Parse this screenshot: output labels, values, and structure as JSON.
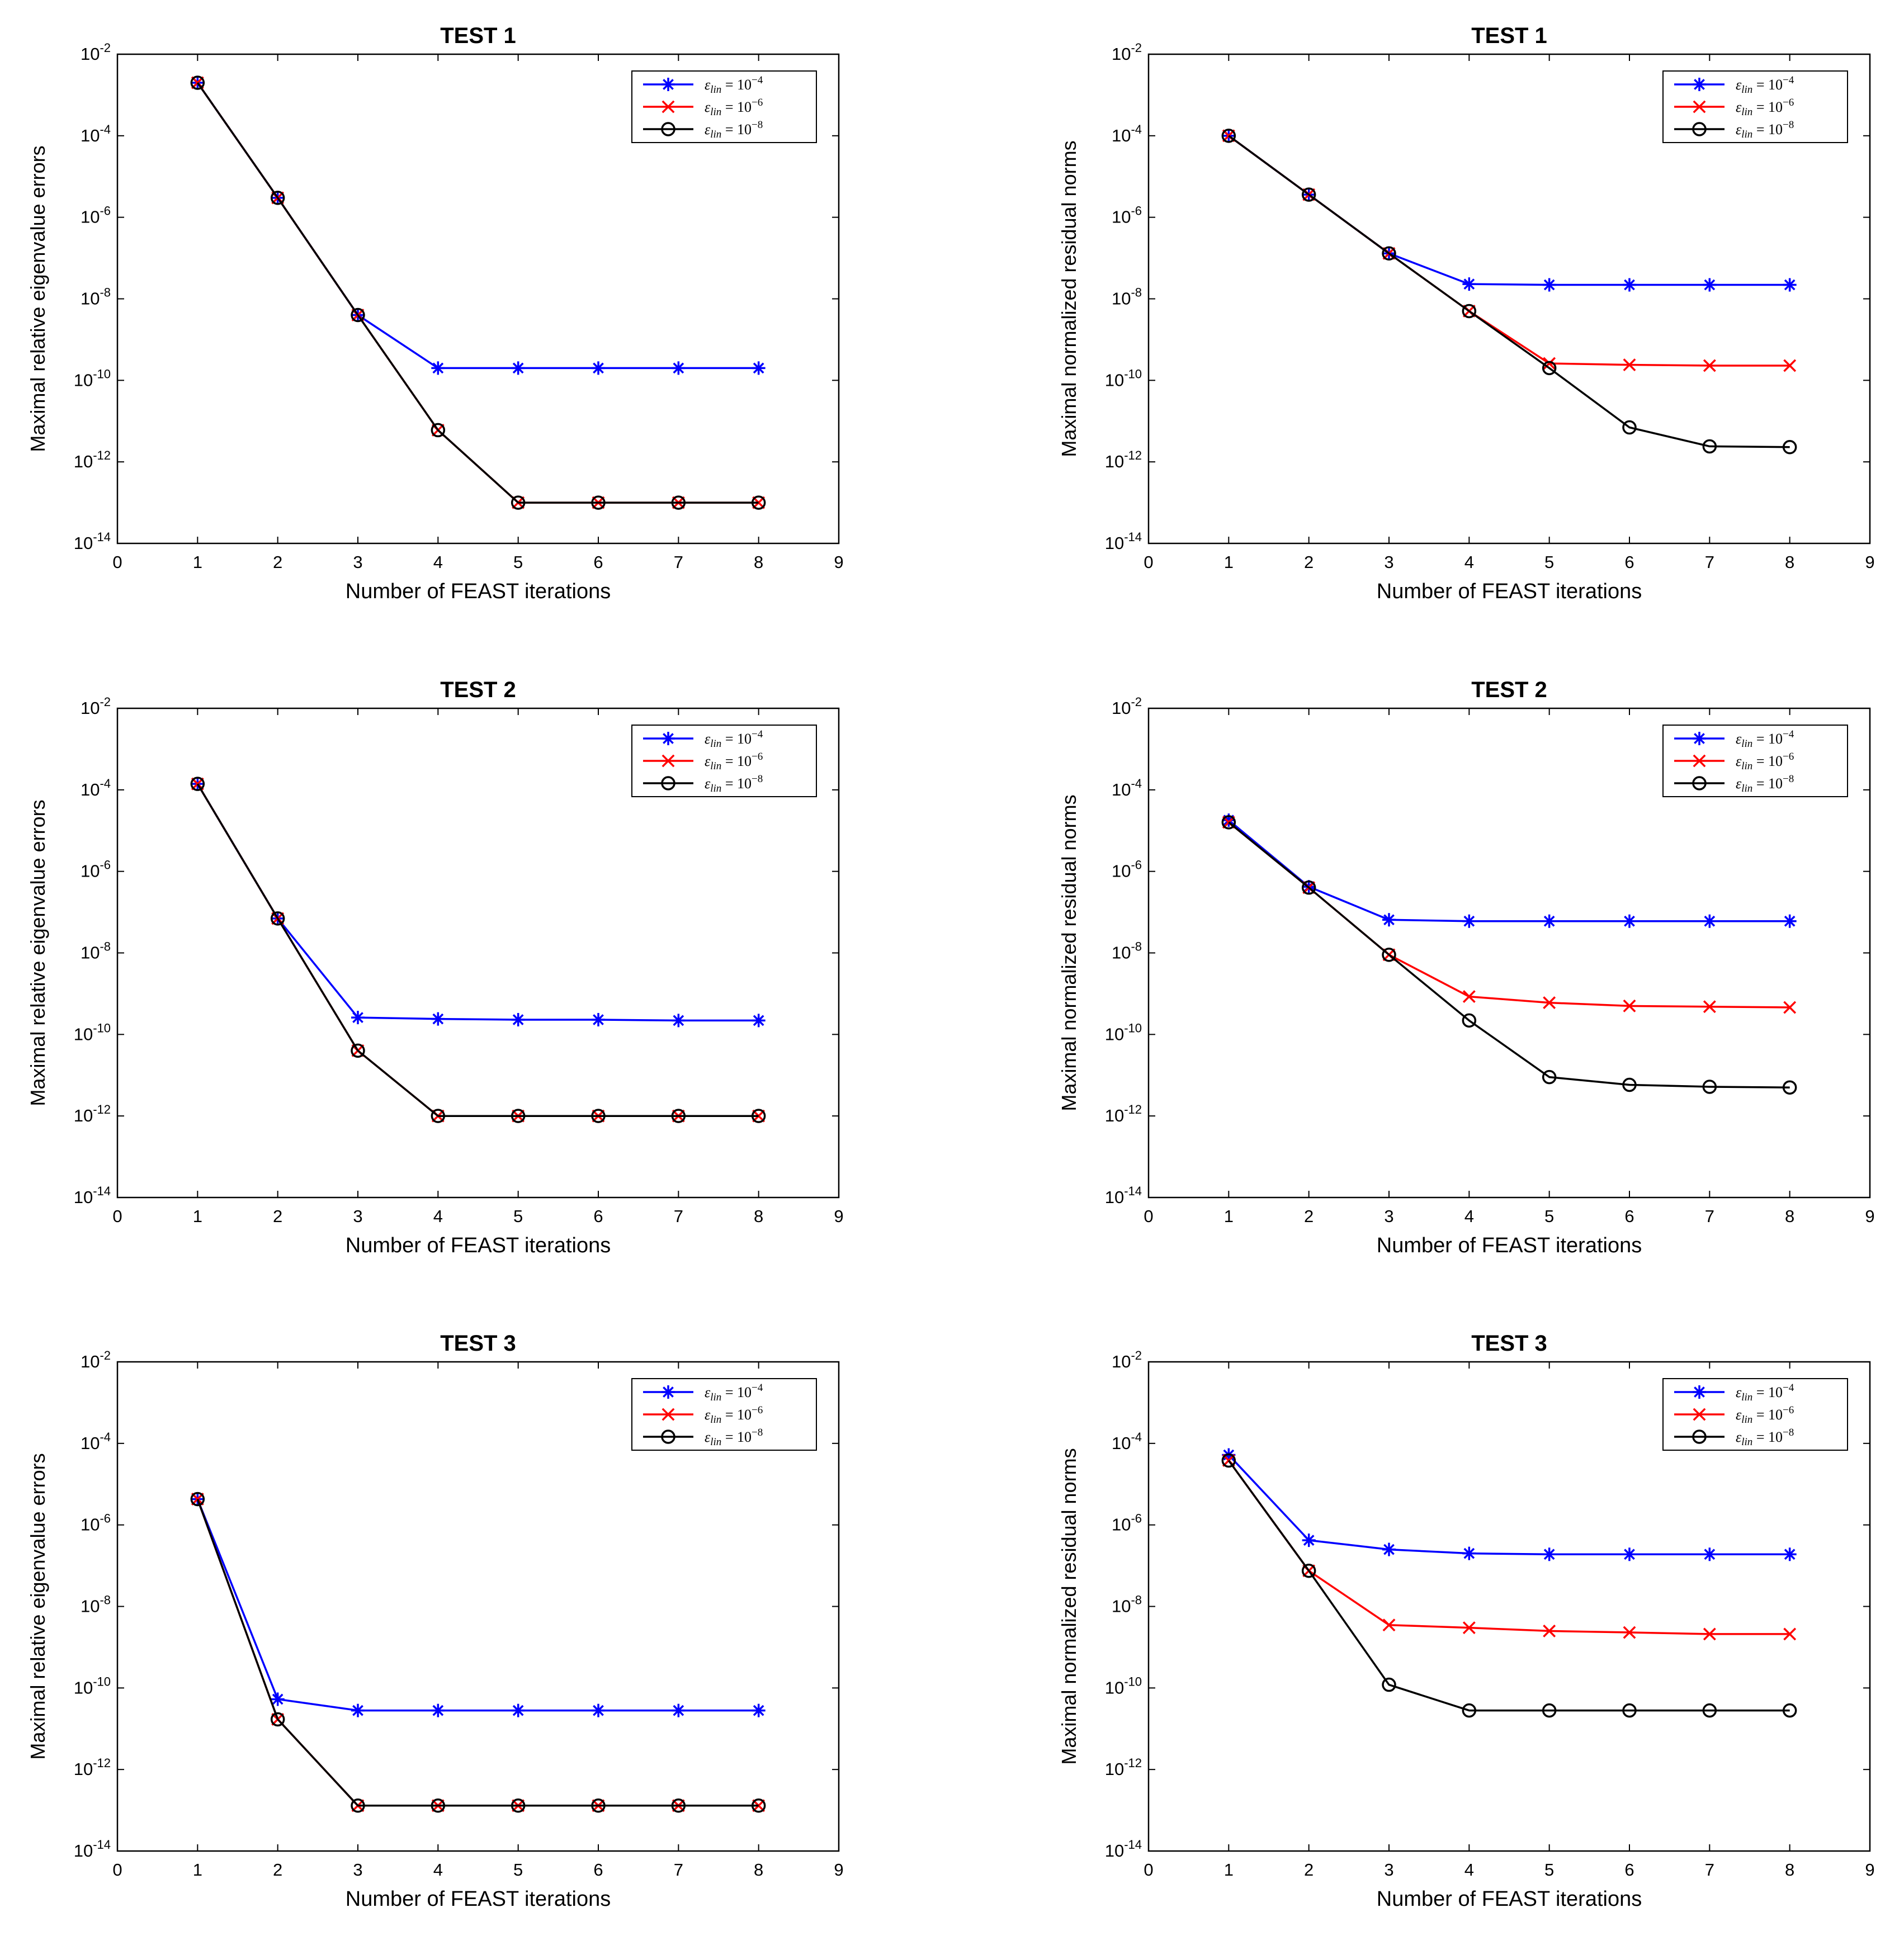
{
  "figure": {
    "x_axis_label": "Number of FEAST iterations",
    "y_axis_label_left": "Maximal relative eigenvalue errors",
    "y_axis_label_right": "Maximal normalized residual norms",
    "x_ticks": [
      "0",
      "1",
      "2",
      "3",
      "4",
      "5",
      "6",
      "7",
      "8",
      "9"
    ],
    "y_ticks": [
      {
        "base": "10",
        "exp": "-14"
      },
      {
        "base": "10",
        "exp": "-12"
      },
      {
        "base": "10",
        "exp": "-10"
      },
      {
        "base": "10",
        "exp": "-8"
      },
      {
        "base": "10",
        "exp": "-6"
      },
      {
        "base": "10",
        "exp": "-4"
      },
      {
        "base": "10",
        "exp": "-2"
      }
    ],
    "legend": [
      {
        "symbol": "ε",
        "sub": "lin",
        "eq": " = 10",
        "exp": "−4",
        "color": "#0000ff",
        "marker": "asterisk"
      },
      {
        "symbol": "ε",
        "sub": "lin",
        "eq": " = 10",
        "exp": "−6",
        "color": "#ff0000",
        "marker": "x"
      },
      {
        "symbol": "ε",
        "sub": "lin",
        "eq": " = 10",
        "exp": "−8",
        "color": "#000000",
        "marker": "circle"
      }
    ]
  },
  "chart_data": [
    {
      "type": "line",
      "title": "TEST 1",
      "xlabel": "Number of FEAST iterations",
      "ylabel": "Maximal relative eigenvalue errors",
      "xlim": [
        0,
        9
      ],
      "ylim": [
        1e-14,
        0.01
      ],
      "yscale": "log",
      "legend_position": "top-right",
      "x": [
        1,
        2,
        3,
        4,
        5,
        6,
        7,
        8
      ],
      "series": [
        {
          "name": "ε_lin = 10^-4",
          "color": "#0000ff",
          "marker": "asterisk",
          "values": [
            0.002,
            3e-06,
            4e-09,
            2e-10,
            2e-10,
            2e-10,
            2e-10,
            2e-10
          ]
        },
        {
          "name": "ε_lin = 10^-6",
          "color": "#ff0000",
          "marker": "x",
          "values": [
            0.002,
            3e-06,
            4e-09,
            6e-12,
            1e-13,
            1e-13,
            1e-13,
            1e-13
          ]
        },
        {
          "name": "ε_lin = 10^-8",
          "color": "#000000",
          "marker": "circle",
          "values": [
            0.002,
            3e-06,
            4e-09,
            6e-12,
            1e-13,
            1e-13,
            1e-13,
            1e-13
          ]
        }
      ]
    },
    {
      "type": "line",
      "title": "TEST 1",
      "xlabel": "Number of FEAST iterations",
      "ylabel": "Maximal normalized residual norms",
      "xlim": [
        0,
        9
      ],
      "ylim": [
        1e-14,
        0.01
      ],
      "yscale": "log",
      "legend_position": "top-right",
      "x": [
        1,
        2,
        3,
        4,
        5,
        6,
        7,
        8
      ],
      "series": [
        {
          "name": "ε_lin = 10^-4",
          "color": "#0000ff",
          "marker": "asterisk",
          "values": [
            0.0001,
            3.6e-06,
            1.3e-07,
            2.3e-08,
            2.2e-08,
            2.2e-08,
            2.2e-08,
            2.2e-08
          ]
        },
        {
          "name": "ε_lin = 10^-6",
          "color": "#ff0000",
          "marker": "x",
          "values": [
            0.0001,
            3.6e-06,
            1.3e-07,
            5e-09,
            2.6e-10,
            2.4e-10,
            2.3e-10,
            2.3e-10
          ]
        },
        {
          "name": "ε_lin = 10^-8",
          "color": "#000000",
          "marker": "circle",
          "values": [
            0.0001,
            3.6e-06,
            1.3e-07,
            5e-09,
            2e-10,
            7e-12,
            2.4e-12,
            2.3e-12
          ]
        }
      ]
    },
    {
      "type": "line",
      "title": "TEST 2",
      "xlabel": "Number of FEAST iterations",
      "ylabel": "Maximal relative eigenvalue errors",
      "xlim": [
        0,
        9
      ],
      "ylim": [
        1e-14,
        0.01
      ],
      "yscale": "log",
      "legend_position": "top-right",
      "x": [
        1,
        2,
        3,
        4,
        5,
        6,
        7,
        8
      ],
      "series": [
        {
          "name": "ε_lin = 10^-4",
          "color": "#0000ff",
          "marker": "asterisk",
          "values": [
            0.00014,
            7e-08,
            2.6e-10,
            2.4e-10,
            2.3e-10,
            2.3e-10,
            2.2e-10,
            2.2e-10
          ]
        },
        {
          "name": "ε_lin = 10^-6",
          "color": "#ff0000",
          "marker": "x",
          "values": [
            0.00014,
            7e-08,
            4e-11,
            1e-12,
            1e-12,
            1e-12,
            1e-12,
            1e-12
          ]
        },
        {
          "name": "ε_lin = 10^-8",
          "color": "#000000",
          "marker": "circle",
          "values": [
            0.00014,
            7e-08,
            4e-11,
            1e-12,
            1e-12,
            1e-12,
            1e-12,
            1e-12
          ]
        }
      ]
    },
    {
      "type": "line",
      "title": "TEST 2",
      "xlabel": "Number of FEAST iterations",
      "ylabel": "Maximal normalized residual norms",
      "xlim": [
        0,
        9
      ],
      "ylim": [
        1e-14,
        0.01
      ],
      "yscale": "log",
      "legend_position": "top-right",
      "x": [
        1,
        2,
        3,
        4,
        5,
        6,
        7,
        8
      ],
      "series": [
        {
          "name": "ε_lin = 10^-4",
          "color": "#0000ff",
          "marker": "asterisk",
          "values": [
            1.8e-05,
            4.2e-07,
            6.5e-08,
            6e-08,
            6e-08,
            6e-08,
            6e-08,
            6e-08
          ]
        },
        {
          "name": "ε_lin = 10^-6",
          "color": "#ff0000",
          "marker": "x",
          "values": [
            1.6e-05,
            4e-07,
            9e-09,
            8.5e-10,
            6e-10,
            5e-10,
            4.8e-10,
            4.6e-10
          ]
        },
        {
          "name": "ε_lin = 10^-8",
          "color": "#000000",
          "marker": "circle",
          "values": [
            1.6e-05,
            4e-07,
            9e-09,
            2.2e-10,
            9e-12,
            5.8e-12,
            5.2e-12,
            5e-12
          ]
        }
      ]
    },
    {
      "type": "line",
      "title": "TEST 3",
      "xlabel": "Number of FEAST iterations",
      "ylabel": "Maximal relative eigenvalue errors",
      "xlim": [
        0,
        9
      ],
      "ylim": [
        1e-14,
        0.01
      ],
      "yscale": "log",
      "legend_position": "top-right",
      "x": [
        1,
        2,
        3,
        4,
        5,
        6,
        7,
        8
      ],
      "series": [
        {
          "name": "ε_lin = 10^-4",
          "color": "#0000ff",
          "marker": "asterisk",
          "values": [
            4.3e-06,
            5.3e-11,
            2.8e-11,
            2.8e-11,
            2.8e-11,
            2.8e-11,
            2.8e-11,
            2.8e-11
          ]
        },
        {
          "name": "ε_lin = 10^-6",
          "color": "#ff0000",
          "marker": "x",
          "values": [
            4.3e-06,
            1.7e-11,
            1.3e-13,
            1.3e-13,
            1.3e-13,
            1.3e-13,
            1.3e-13,
            1.3e-13
          ]
        },
        {
          "name": "ε_lin = 10^-8",
          "color": "#000000",
          "marker": "circle",
          "values": [
            4.3e-06,
            1.7e-11,
            1.3e-13,
            1.3e-13,
            1.3e-13,
            1.3e-13,
            1.3e-13,
            1.3e-13
          ]
        }
      ]
    },
    {
      "type": "line",
      "title": "TEST 3",
      "xlabel": "Number of FEAST iterations",
      "ylabel": "Maximal normalized residual norms",
      "xlim": [
        0,
        9
      ],
      "ylim": [
        1e-14,
        0.01
      ],
      "yscale": "log",
      "legend_position": "top-right",
      "x": [
        1,
        2,
        3,
        4,
        5,
        6,
        7,
        8
      ],
      "series": [
        {
          "name": "ε_lin = 10^-4",
          "color": "#0000ff",
          "marker": "asterisk",
          "values": [
            5.2e-05,
            4.2e-07,
            2.5e-07,
            2e-07,
            1.9e-07,
            1.9e-07,
            1.9e-07,
            1.9e-07
          ]
        },
        {
          "name": "ε_lin = 10^-6",
          "color": "#ff0000",
          "marker": "x",
          "values": [
            3.8e-05,
            7.5e-08,
            3.5e-09,
            3e-09,
            2.5e-09,
            2.3e-09,
            2.1e-09,
            2.1e-09
          ]
        },
        {
          "name": "ε_lin = 10^-8",
          "color": "#000000",
          "marker": "circle",
          "values": [
            3.8e-05,
            7.5e-08,
            1.2e-10,
            2.8e-11,
            2.8e-11,
            2.8e-11,
            2.8e-11,
            2.8e-11
          ]
        }
      ]
    }
  ]
}
